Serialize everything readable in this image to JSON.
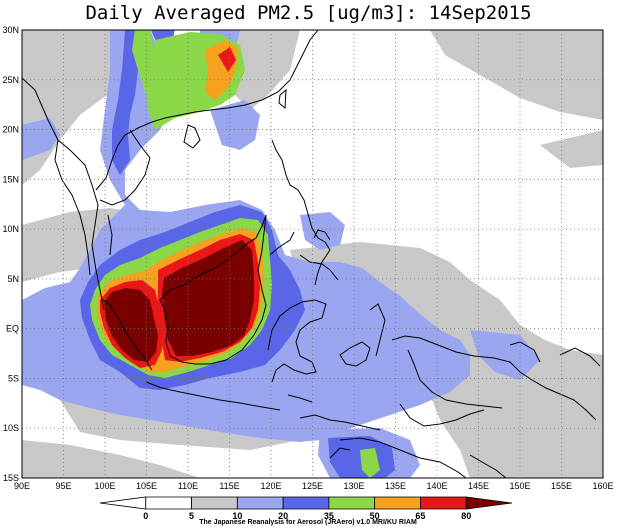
{
  "title": "Daily Averaged PM2.5 [ug/m3]: 14Sep2015",
  "credit": "The Japanese Reanalysis for Aerosol (JRAero) v1.0 MRI/KU RIAM",
  "lon_labels": [
    "90E",
    "95E",
    "100E",
    "105E",
    "110E",
    "115E",
    "120E",
    "125E",
    "130E",
    "135E",
    "140E",
    "145E",
    "150E",
    "155E",
    "160E"
  ],
  "lat_labels": [
    "30N",
    "25N",
    "20N",
    "15N",
    "10N",
    "5N",
    "EQ",
    "5S",
    "10S",
    "15S"
  ],
  "map": {
    "lon_range": [
      90,
      160
    ],
    "lat_range": [
      -15,
      30
    ],
    "lon_step": 5,
    "lat_step": 5,
    "grid": "dotted"
  },
  "colorbar": {
    "labels": [
      "0",
      "5",
      "10",
      "20",
      "35",
      "50",
      "65",
      "80"
    ],
    "colors": [
      "#ffffff",
      "#ffffff",
      "#c8c8c8",
      "#9aa6f0",
      "#5a66e8",
      "#8ad848",
      "#f6a21e",
      "#e81818",
      "#7a0000"
    ]
  },
  "pm25_levels": [
    {
      "name": "5-10",
      "color": "#c8c8c8"
    },
    {
      "name": "10-20",
      "color": "#9aa6f0"
    },
    {
      "name": "20-35",
      "color": "#5a66e8"
    },
    {
      "name": "35-50",
      "color": "#8ad848"
    },
    {
      "name": "50-65",
      "color": "#f6a21e"
    },
    {
      "name": "65-80",
      "color": "#e81818"
    },
    {
      "name": ">80",
      "color": "#7a0000"
    }
  ]
}
